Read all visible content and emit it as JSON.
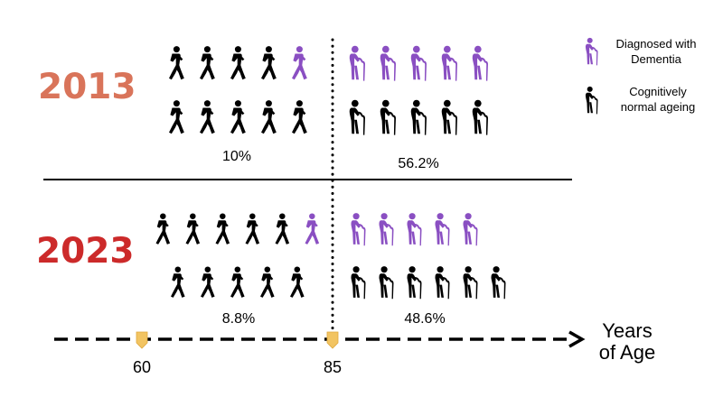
{
  "legend": {
    "dementia_lines": [
      "Diagnosed with",
      "Dementia"
    ],
    "normal_lines": [
      "Cognitively",
      "normal ageing"
    ]
  },
  "colors": {
    "dementia": "#8a4fc2",
    "normal": "#000000",
    "year_2013": "#d9745a",
    "year_2023": "#cc2a2a",
    "marker": "#f2c462"
  },
  "panels": [
    {
      "year": "2013",
      "groups": [
        {
          "label": "10%",
          "figure": "walker-icon",
          "count": 10,
          "dementia": 1
        },
        {
          "label": "56.2%",
          "figure": "elder-cane-icon",
          "count": 10,
          "dementia": 5
        }
      ]
    },
    {
      "year": "2023",
      "groups": [
        {
          "label": "8.8%",
          "figure": "walker-icon",
          "count": 11,
          "dementia": 1
        },
        {
          "label": "48.6%",
          "figure": "elder-cane-icon",
          "count": 11,
          "dementia": 5
        }
      ]
    }
  ],
  "axis": {
    "title_lines": [
      "Years",
      "of Age"
    ],
    "ticks": [
      "60",
      "85"
    ]
  }
}
